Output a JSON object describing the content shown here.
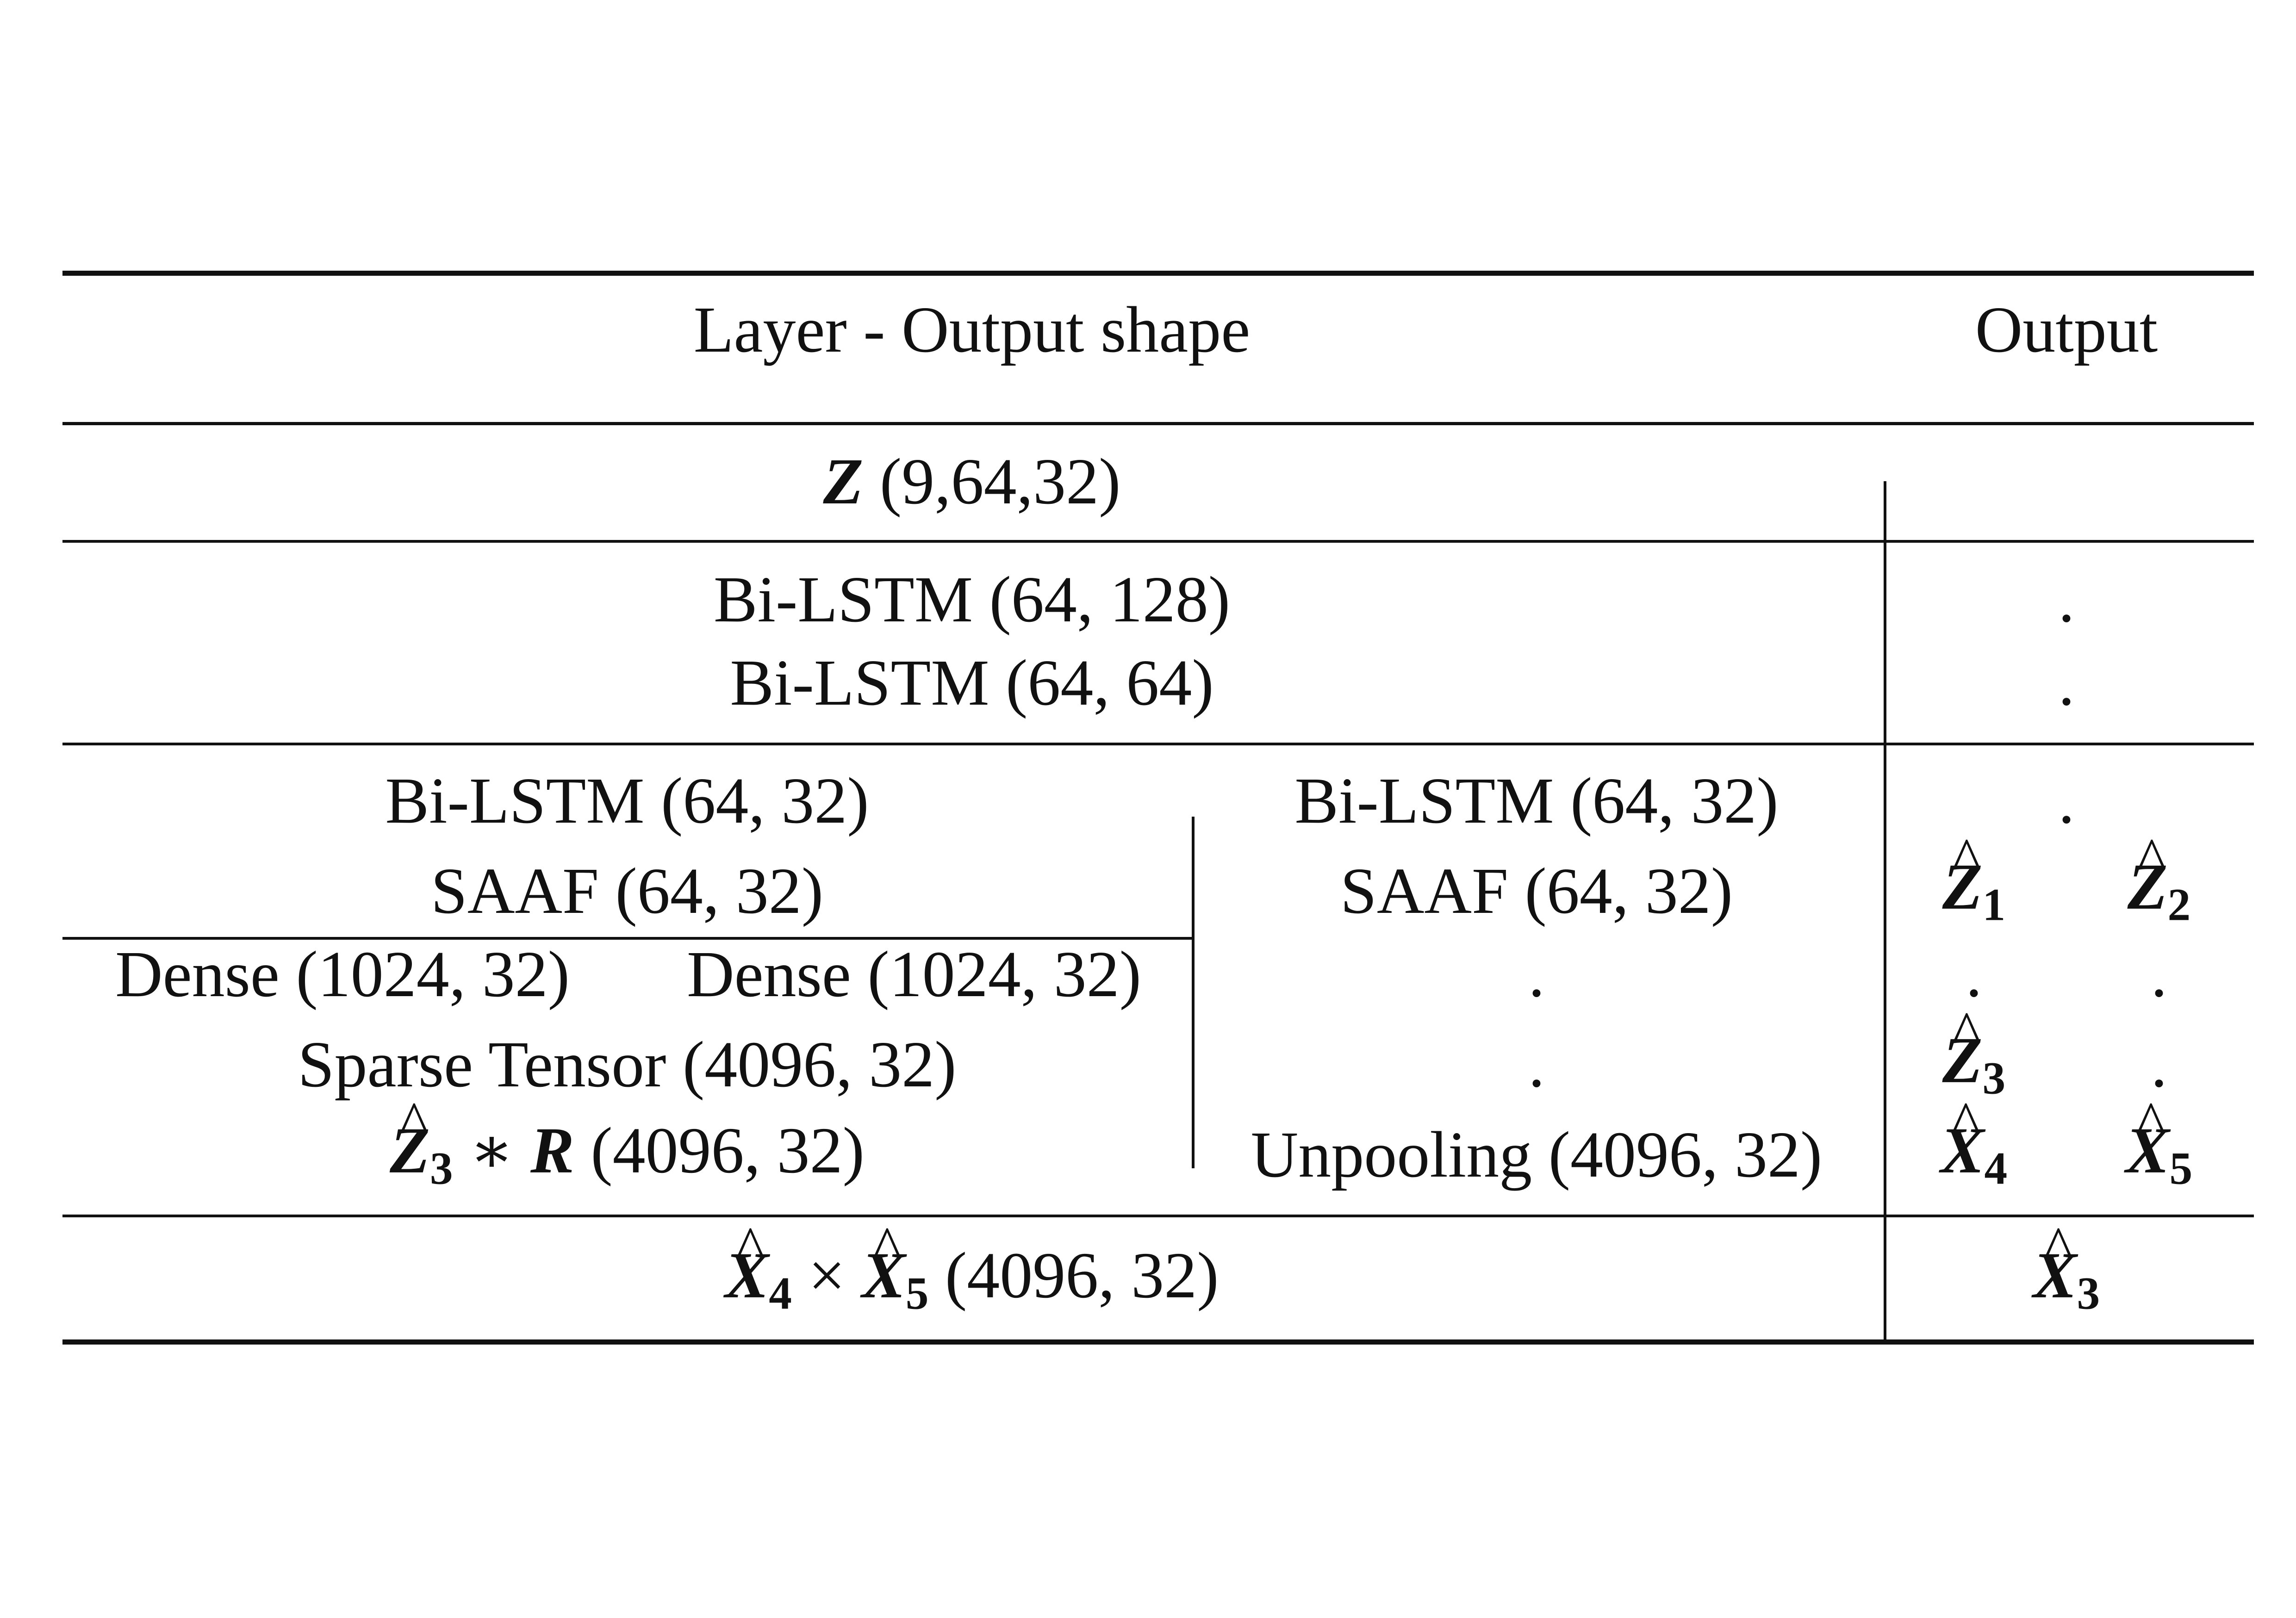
{
  "header": {
    "layer_col": "Layer - Output shape",
    "output_col": "Output"
  },
  "rows": {
    "z_input": {
      "shape": "(9,64,32)"
    },
    "bilstm_1": "Bi-LSTM (64, 128)",
    "bilstm_2": "Bi-LSTM (64, 64)",
    "left_branch": {
      "bilstm": "Bi-LSTM (64, 32)",
      "saaf": "SAAF (64, 32)",
      "dense_a": "Dense (1024, 32)",
      "dense_b": "Dense (1024, 32)",
      "sparse": "Sparse Tensor (4096, 32)",
      "product_shape": "(4096, 32)"
    },
    "right_branch": {
      "bilstm": "Bi-LSTM (64, 32)",
      "saaf": "SAAF (64, 32)",
      "dot1": ".",
      "dot2": ".",
      "unpool": "Unpooling (4096, 32)"
    },
    "final": {
      "shape": "(4096, 32)"
    }
  },
  "outputs": {
    "dot": ".",
    "z1_sub": "1",
    "z2_sub": "2",
    "z3_sub": "3",
    "x4_sub": "4",
    "x5_sub": "5",
    "x3_sub": "3"
  },
  "symbols": {
    "Z": "Z",
    "X": "X",
    "R": "R",
    "hat": "^",
    "star": "∗",
    "times": "×"
  }
}
